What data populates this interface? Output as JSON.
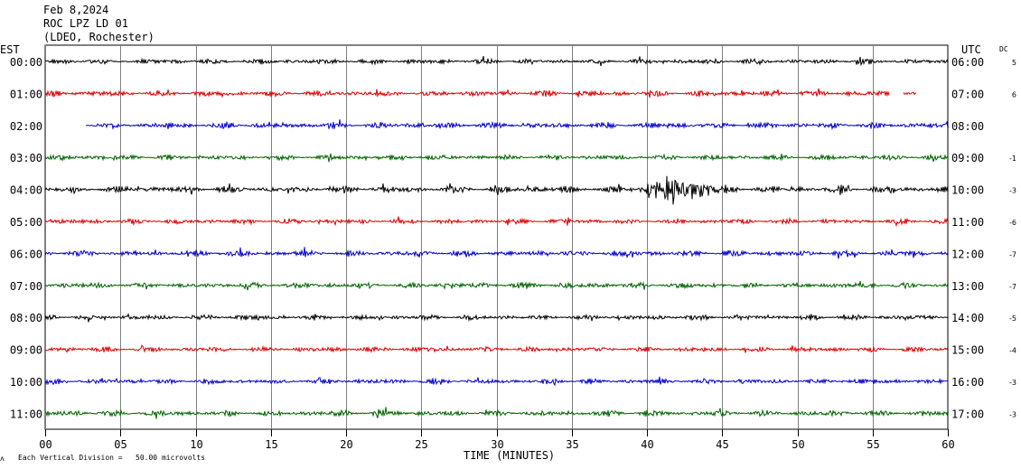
{
  "header": {
    "date": "Feb 8,2024",
    "station": "ROC LPZ LD 01",
    "network": "(LDEO, Rochester)"
  },
  "left_zone": "EST",
  "right_zone": "UTC",
  "dc_header": "DC",
  "footer": {
    "note": "Each Vertical Division =   50.00 microvolts",
    "xlabel": "TIME (MINUTES)"
  },
  "chart_data": {
    "type": "line",
    "title": "",
    "xlabel": "TIME (MINUTES)",
    "ylabel": "",
    "xlim": [
      0,
      60
    ],
    "x_ticks": [
      "00",
      "05",
      "10",
      "15",
      "20",
      "25",
      "30",
      "35",
      "40",
      "45",
      "50",
      "55",
      "60"
    ],
    "grid": true,
    "colors": [
      "#000000",
      "#dd0000",
      "#0000cc",
      "#006400"
    ],
    "series": [
      {
        "est": "00:00",
        "utc": "06:00",
        "dc": "5",
        "color": "#000000",
        "start": 0,
        "end": 60,
        "amp": 0.6,
        "event": null
      },
      {
        "est": "01:00",
        "utc": "07:00",
        "dc": "6",
        "color": "#dd0000",
        "start": 0,
        "end": 57.9,
        "amp": 0.7,
        "gap": [
          56.1,
          57.0
        ],
        "event": null
      },
      {
        "est": "02:00",
        "utc": "08:00",
        "dc": "",
        "color": "#0000cc",
        "start": 2.7,
        "end": 60,
        "amp": 0.7,
        "event": null
      },
      {
        "est": "03:00",
        "utc": "09:00",
        "dc": "-1",
        "color": "#006400",
        "start": 0,
        "end": 60,
        "amp": 0.6,
        "event": null
      },
      {
        "est": "04:00",
        "utc": "10:00",
        "dc": "-3",
        "color": "#000000",
        "start": 0,
        "end": 60,
        "amp": 0.8,
        "event": {
          "start_min": 39.0,
          "peak_min": 41.8,
          "end_min": 46.0,
          "amplitude": 4.2
        }
      },
      {
        "est": "05:00",
        "utc": "11:00",
        "dc": "-6",
        "color": "#dd0000",
        "start": 0,
        "end": 60,
        "amp": 0.6,
        "event": null
      },
      {
        "est": "06:00",
        "utc": "12:00",
        "dc": "-7",
        "color": "#0000cc",
        "start": 0,
        "end": 60,
        "amp": 0.7,
        "event": null
      },
      {
        "est": "07:00",
        "utc": "13:00",
        "dc": "-7",
        "color": "#006400",
        "start": 0,
        "end": 60,
        "amp": 0.7,
        "event": null
      },
      {
        "est": "08:00",
        "utc": "14:00",
        "dc": "-5",
        "color": "#000000",
        "start": 0,
        "end": 60,
        "amp": 0.6,
        "event": null
      },
      {
        "est": "09:00",
        "utc": "15:00",
        "dc": "-4",
        "color": "#dd0000",
        "start": 0,
        "end": 60,
        "amp": 0.6,
        "event": null
      },
      {
        "est": "10:00",
        "utc": "16:00",
        "dc": "-3",
        "color": "#0000cc",
        "start": 0,
        "end": 60,
        "amp": 0.6,
        "event": null
      },
      {
        "est": "11:00",
        "utc": "17:00",
        "dc": "-3",
        "color": "#006400",
        "start": 0,
        "end": 60,
        "amp": 0.7,
        "event": null
      }
    ]
  }
}
